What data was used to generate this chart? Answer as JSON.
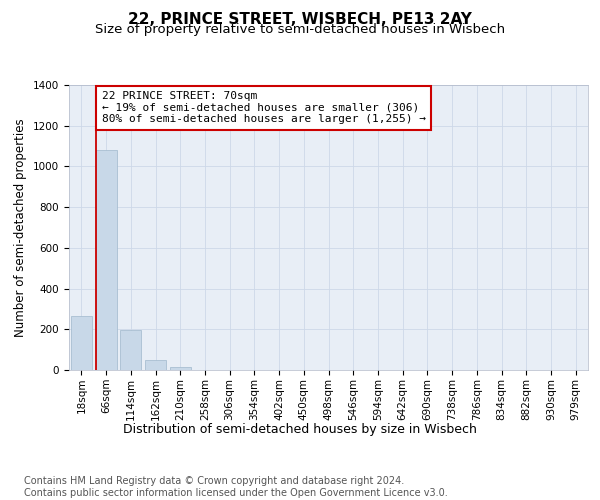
{
  "title": "22, PRINCE STREET, WISBECH, PE13 2AY",
  "subtitle": "Size of property relative to semi-detached houses in Wisbech",
  "xlabel": "Distribution of semi-detached houses by size in Wisbech",
  "ylabel": "Number of semi-detached properties",
  "bar_labels": [
    "18sqm",
    "66sqm",
    "114sqm",
    "162sqm",
    "210sqm",
    "258sqm",
    "306sqm",
    "354sqm",
    "402sqm",
    "450sqm",
    "498sqm",
    "546sqm",
    "594sqm",
    "642sqm",
    "690sqm",
    "738sqm",
    "786sqm",
    "834sqm",
    "882sqm",
    "930sqm",
    "979sqm"
  ],
  "bar_values": [
    265,
    1080,
    195,
    48,
    15,
    0,
    0,
    0,
    0,
    0,
    0,
    0,
    0,
    0,
    0,
    0,
    0,
    0,
    0,
    0,
    0
  ],
  "bar_color": "#c8d8e8",
  "bar_edge_color": "#a0b8cc",
  "annotation_text": "22 PRINCE STREET: 70sqm\n← 19% of semi-detached houses are smaller (306)\n80% of semi-detached houses are larger (1,255) →",
  "annotation_box_color": "#ffffff",
  "annotation_box_edge_color": "#cc0000",
  "red_line_x": 0.58,
  "grid_color": "#cdd8e8",
  "background_color": "#e8eef6",
  "ylim": [
    0,
    1400
  ],
  "footer_text": "Contains HM Land Registry data © Crown copyright and database right 2024.\nContains public sector information licensed under the Open Government Licence v3.0.",
  "title_fontsize": 11,
  "subtitle_fontsize": 9.5,
  "xlabel_fontsize": 9,
  "ylabel_fontsize": 8.5,
  "tick_fontsize": 7.5,
  "annotation_fontsize": 8,
  "footer_fontsize": 7
}
